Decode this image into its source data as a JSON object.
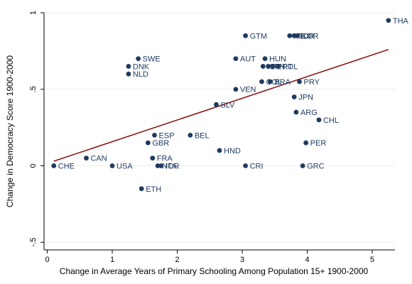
{
  "chart_data": {
    "type": "scatter",
    "xlabel": "Change in Average Years of Primary Schooling Among Population 15+ 1900-2000",
    "ylabel": "Change in Democracy Score 1900-2000",
    "xlim": [
      -0.05,
      5.35
    ],
    "ylim": [
      -0.55,
      1.0
    ],
    "x_ticks": [
      {
        "value": 0,
        "label": "0"
      },
      {
        "value": 1,
        "label": "1"
      },
      {
        "value": 2,
        "label": "2"
      },
      {
        "value": 3,
        "label": "3"
      },
      {
        "value": 4,
        "label": "4"
      },
      {
        "value": 5,
        "label": "5"
      }
    ],
    "y_ticks": [
      {
        "value": -0.5,
        "label": "-.5"
      },
      {
        "value": 0,
        "label": "0"
      },
      {
        "value": 0.5,
        "label": ".5"
      },
      {
        "value": 1,
        "label": "1"
      }
    ],
    "grid": "horizontal",
    "points": [
      {
        "label": "CHE",
        "x": 0.1,
        "y": 0.0
      },
      {
        "label": "CAN",
        "x": 0.6,
        "y": 0.05
      },
      {
        "label": "USA",
        "x": 1.0,
        "y": 0.0
      },
      {
        "label": "SWE",
        "x": 1.4,
        "y": 0.7
      },
      {
        "label": "DNK",
        "x": 1.25,
        "y": 0.65
      },
      {
        "label": "NLD",
        "x": 1.25,
        "y": 0.6
      },
      {
        "label": "ETH",
        "x": 1.45,
        "y": -0.15
      },
      {
        "label": "ESP",
        "x": 1.65,
        "y": 0.2
      },
      {
        "label": "GBR",
        "x": 1.55,
        "y": 0.15
      },
      {
        "label": "FRA",
        "x": 1.62,
        "y": 0.05
      },
      {
        "label": "NOR",
        "x": 1.7,
        "y": 0.0
      },
      {
        "label": "ITA",
        "x": 1.75,
        "y": 0.0
      },
      {
        "label": "BEL",
        "x": 2.2,
        "y": 0.2
      },
      {
        "label": "HND",
        "x": 2.65,
        "y": 0.1
      },
      {
        "label": "SLV",
        "x": 2.6,
        "y": 0.4
      },
      {
        "label": "VEN",
        "x": 2.9,
        "y": 0.5
      },
      {
        "label": "AUT",
        "x": 2.9,
        "y": 0.7
      },
      {
        "label": "GTM",
        "x": 3.05,
        "y": 0.85
      },
      {
        "label": "CRI",
        "x": 3.05,
        "y": 0.0
      },
      {
        "label": "HUN",
        "x": 3.35,
        "y": 0.7
      },
      {
        "label": "ISR",
        "x": 3.32,
        "y": 0.65
      },
      {
        "label": "FIN",
        "x": 3.4,
        "y": 0.65
      },
      {
        "label": "PRT",
        "x": 3.47,
        "y": 0.65
      },
      {
        "label": "POL",
        "x": 3.55,
        "y": 0.65
      },
      {
        "label": "COL",
        "x": 3.3,
        "y": 0.55
      },
      {
        "label": "BRA",
        "x": 3.43,
        "y": 0.55
      },
      {
        "label": "PRY",
        "x": 3.88,
        "y": 0.55
      },
      {
        "label": "JPN",
        "x": 3.8,
        "y": 0.45
      },
      {
        "label": "ARG",
        "x": 3.83,
        "y": 0.35
      },
      {
        "label": "CHL",
        "x": 4.18,
        "y": 0.3
      },
      {
        "label": "PER",
        "x": 3.98,
        "y": 0.15
      },
      {
        "label": "GRC",
        "x": 3.93,
        "y": 0.0
      },
      {
        "label": "MEX",
        "x": 3.73,
        "y": 0.85
      },
      {
        "label": "TUR",
        "x": 3.8,
        "y": 0.85
      },
      {
        "label": "KOR",
        "x": 3.85,
        "y": 0.85
      },
      {
        "label": "THA",
        "x": 5.25,
        "y": 0.95
      }
    ],
    "fit_line": {
      "x": [
        0.1,
        5.25
      ],
      "y": [
        0.03,
        0.76
      ]
    },
    "colors": {
      "point": "#1f3a5f",
      "fit_line": "#8b1a1a",
      "grid": "#e8eef2",
      "axis": "#000000"
    }
  }
}
